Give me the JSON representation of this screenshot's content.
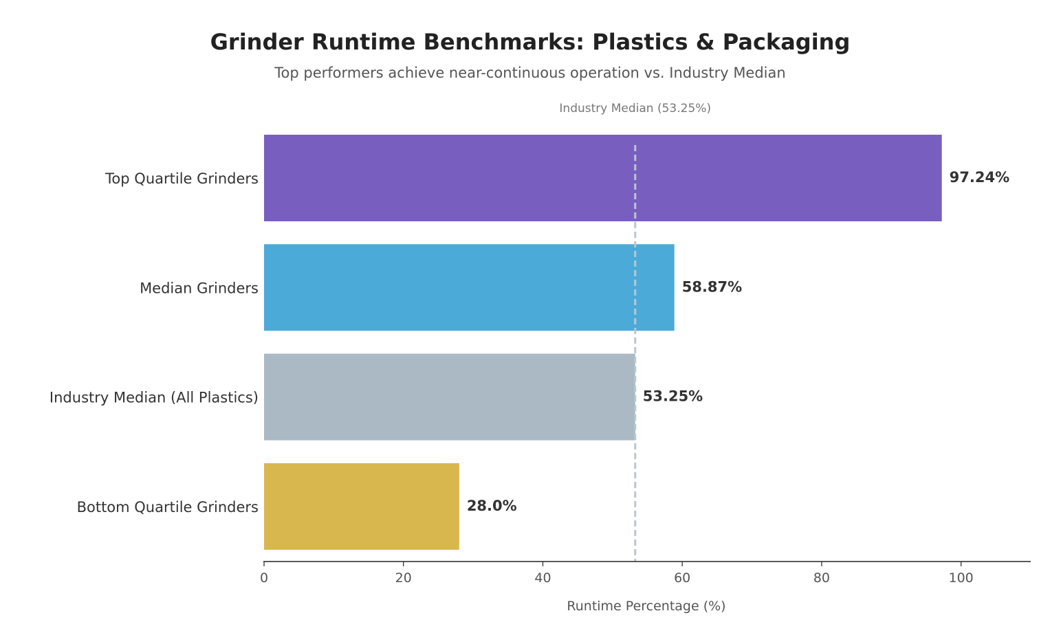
{
  "chart_data": {
    "type": "bar",
    "orientation": "horizontal",
    "title": "Grinder Runtime Benchmarks: Plastics & Packaging",
    "subtitle": "Top performers achieve near-continuous operation vs. Industry Median",
    "xlabel": "Runtime Percentage (%)",
    "ylabel": "",
    "xlim": [
      0,
      110
    ],
    "xticks": [
      0,
      20,
      40,
      60,
      80,
      100
    ],
    "grid": false,
    "categories": [
      "Top Quartile Grinders",
      "Median Grinders",
      "Industry Median (All Plastics)",
      "Bottom Quartile Grinders"
    ],
    "values": [
      97.24,
      58.87,
      53.25,
      28.0
    ],
    "value_labels": [
      "97.24%",
      "58.87%",
      "53.25%",
      "28.0%"
    ],
    "colors": [
      "#785fbf",
      "#4caad9",
      "#abb9c4",
      "#d9b74f"
    ],
    "reference_line": {
      "value": 53.25,
      "label": "Industry Median (53.25%)",
      "color": "#b8c7d3",
      "style": "dashed"
    }
  }
}
